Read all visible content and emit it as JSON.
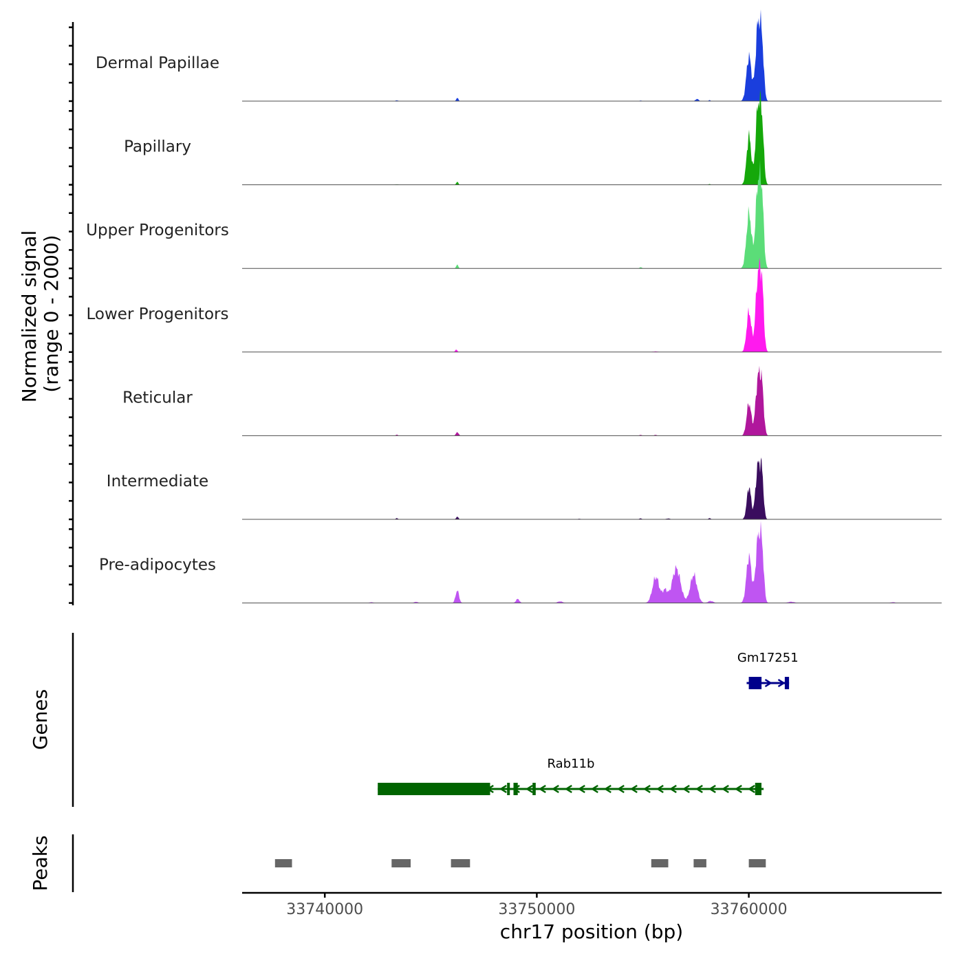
{
  "chart_data": {
    "type": "area",
    "title": "",
    "xlabel": "chr17 position (bp)",
    "ylabel_line1": "Normalized signal",
    "ylabel_line2": "(range 0 - 2000)",
    "ylim": [
      0,
      2000
    ],
    "xlim": [
      33736100,
      33769100
    ],
    "x_ticks": [
      33740000,
      33750000,
      33760000
    ],
    "x_tick_labels": [
      "33740000",
      "33750000",
      "33760000"
    ],
    "baseline_color": "#4d4d4d",
    "tracks": [
      {
        "name": "Dermal Papillae",
        "color": "#1a3edd",
        "peaks": [
          [
            33743400,
            20,
            60
          ],
          [
            33746250,
            80,
            50
          ],
          [
            33754900,
            15,
            60
          ],
          [
            33757560,
            55,
            70
          ],
          [
            33758150,
            25,
            40
          ],
          [
            33760010,
            1100,
            120
          ],
          [
            33760430,
            1800,
            110
          ],
          [
            33760620,
            1300,
            90
          ]
        ]
      },
      {
        "name": "Papillary",
        "color": "#15a80a",
        "peaks": [
          [
            33743400,
            10,
            60
          ],
          [
            33746250,
            70,
            50
          ],
          [
            33758150,
            20,
            40
          ],
          [
            33760010,
            1200,
            110
          ],
          [
            33760430,
            1850,
            110
          ],
          [
            33760620,
            1400,
            90
          ]
        ]
      },
      {
        "name": "Upper Progenitors",
        "color": "#5bdd78",
        "peaks": [
          [
            33746250,
            90,
            50
          ],
          [
            33754900,
            30,
            50
          ],
          [
            33760010,
            1350,
            120
          ],
          [
            33760430,
            2000,
            110
          ],
          [
            33760620,
            1600,
            90
          ]
        ]
      },
      {
        "name": "Lower Progenitors",
        "color": "#ff1aee",
        "peaks": [
          [
            33746200,
            60,
            50
          ],
          [
            33755600,
            15,
            120
          ],
          [
            33760010,
            1000,
            110
          ],
          [
            33760430,
            1800,
            110
          ],
          [
            33760620,
            1500,
            90
          ]
        ]
      },
      {
        "name": "Reticular",
        "color": "#b0179c",
        "peaks": [
          [
            33743400,
            25,
            50
          ],
          [
            33746250,
            90,
            60
          ],
          [
            33754900,
            20,
            60
          ],
          [
            33755600,
            20,
            60
          ],
          [
            33760010,
            800,
            110
          ],
          [
            33760430,
            1350,
            110
          ],
          [
            33760620,
            1100,
            90
          ]
        ]
      },
      {
        "name": "Intermediate",
        "color": "#3a0d5e",
        "peaks": [
          [
            33743400,
            30,
            50
          ],
          [
            33746250,
            70,
            50
          ],
          [
            33752000,
            15,
            60
          ],
          [
            33754900,
            25,
            60
          ],
          [
            33756200,
            20,
            100
          ],
          [
            33758150,
            30,
            50
          ],
          [
            33760010,
            800,
            100
          ],
          [
            33760430,
            1300,
            110
          ],
          [
            33760620,
            1000,
            80
          ]
        ]
      },
      {
        "name": "Pre-adipocytes",
        "color": "#bf55f2",
        "peaks": [
          [
            33742200,
            20,
            80
          ],
          [
            33744300,
            30,
            80
          ],
          [
            33746250,
            310,
            80
          ],
          [
            33749100,
            100,
            80
          ],
          [
            33751100,
            40,
            120
          ],
          [
            33755620,
            640,
            160
          ],
          [
            33756050,
            300,
            120
          ],
          [
            33756580,
            850,
            200
          ],
          [
            33757400,
            690,
            160
          ],
          [
            33758200,
            50,
            120
          ],
          [
            33760010,
            1150,
            120
          ],
          [
            33760430,
            1500,
            110
          ],
          [
            33760620,
            1250,
            90
          ],
          [
            33762000,
            30,
            150
          ],
          [
            33766800,
            20,
            100
          ]
        ]
      }
    ],
    "genes": [
      {
        "name": "Gm17251",
        "color": "#00008b",
        "strand": "+",
        "start": 33759900,
        "end": 33761900,
        "exons": [
          [
            33760000,
            33760600
          ],
          [
            33761700,
            33761900
          ]
        ]
      },
      {
        "name": "Rab11b",
        "color": "#006400",
        "strand": "-",
        "start": 33742500,
        "end": 33760700,
        "exons": [
          [
            33742500,
            33747800
          ],
          [
            33748600,
            33748700
          ],
          [
            33748900,
            33749100
          ],
          [
            33749800,
            33749950
          ],
          [
            33760300,
            33760600
          ]
        ]
      }
    ],
    "peaks_track_color": "#666666",
    "peaks": [
      [
        33737650,
        33738450
      ],
      [
        33743150,
        33744050
      ],
      [
        33745950,
        33746850
      ],
      [
        33755400,
        33756200
      ],
      [
        33757400,
        33758000
      ],
      [
        33760000,
        33760800
      ]
    ],
    "panel_labels": {
      "genes": "Genes",
      "peaks": "Peaks"
    }
  }
}
